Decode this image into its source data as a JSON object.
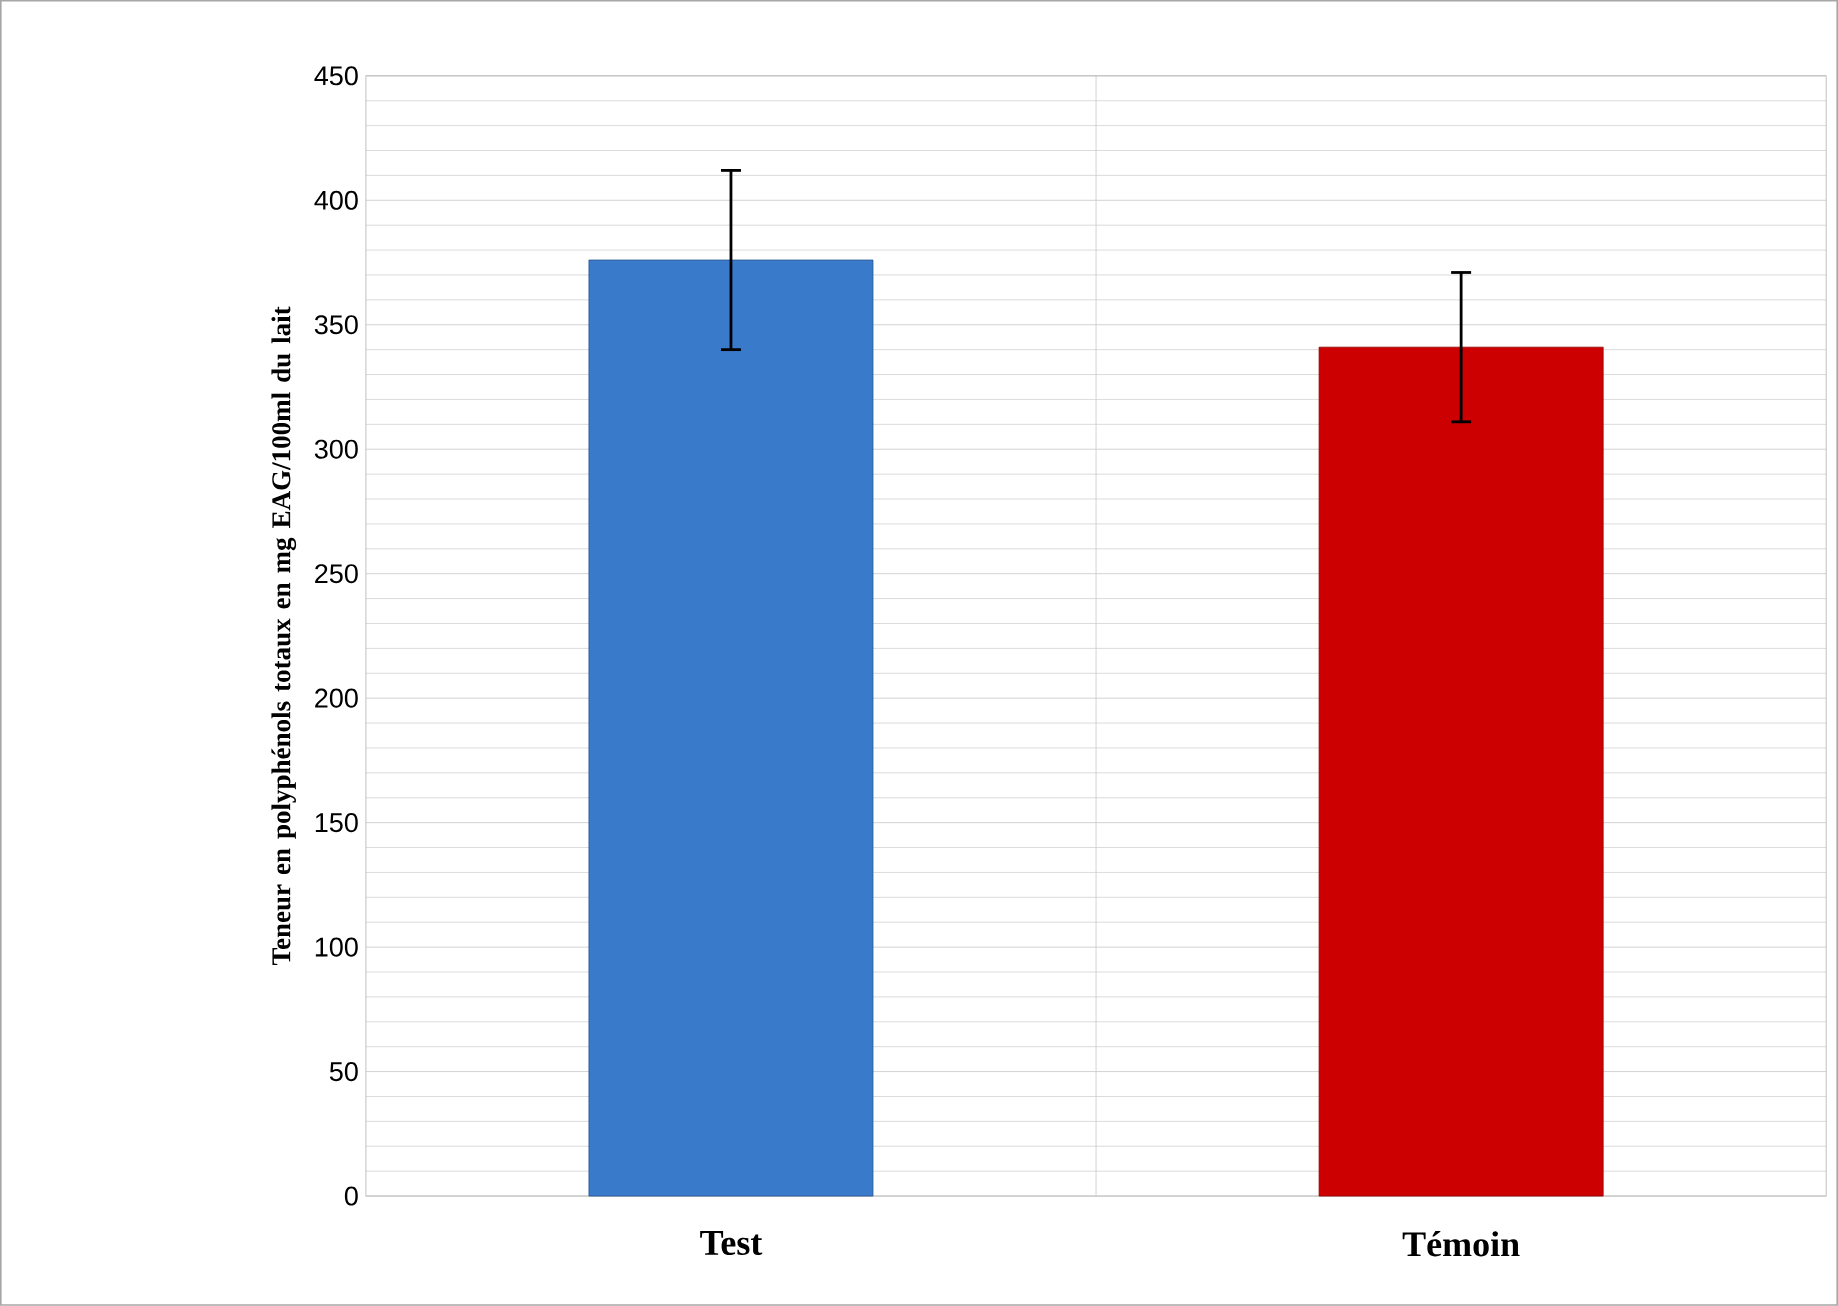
{
  "chart_data": {
    "type": "bar",
    "ylabel": "Teneur en polyphénols totaux en mg EAG/100ml du lait",
    "categories": [
      "Test",
      "Témoin"
    ],
    "values": [
      376,
      341
    ],
    "errors": [
      36,
      30
    ],
    "colors": [
      "#3a7acb",
      "#cc0000"
    ],
    "ylim": [
      0,
      450
    ],
    "yticks": [
      0,
      50,
      100,
      150,
      200,
      250,
      300,
      350,
      400,
      450
    ],
    "grid": true
  }
}
